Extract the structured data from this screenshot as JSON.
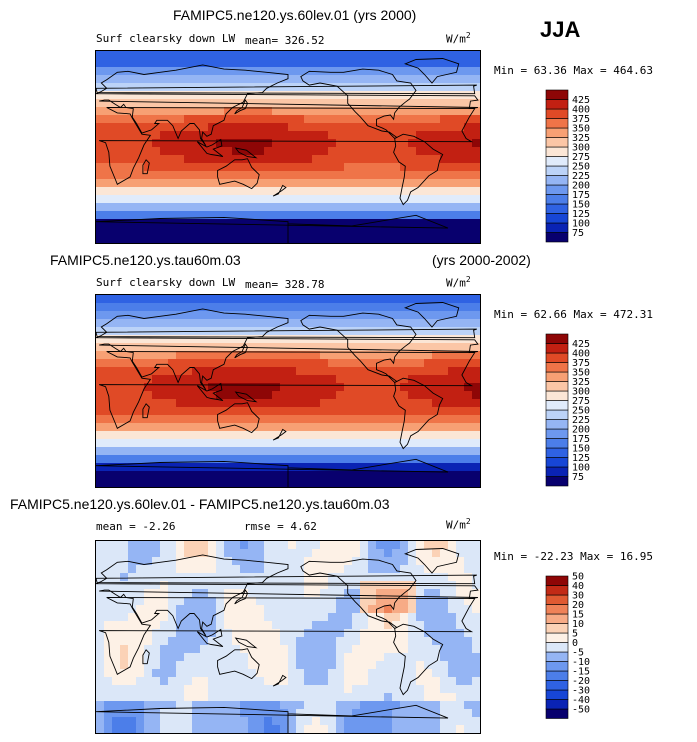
{
  "season": "JJA",
  "units": "W/m",
  "units_sup": "2",
  "panels": [
    {
      "header_left": "FAMIPC5.ne120.ys.60lev.01 (yrs 2000)",
      "variable": "Surf clearsky down LW",
      "stat1": "mean= 326.52",
      "minmax": "Min =  63.36 Max = 464.63",
      "kind": "absolute"
    },
    {
      "header_left": "FAMIPC5.ne120.ys.tau60m.03",
      "header_right": "(yrs 2000-2002)",
      "variable": "Surf clearsky down LW",
      "stat1": "mean= 328.78",
      "minmax": "Min =  62.66 Max = 472.31",
      "kind": "absolute"
    },
    {
      "header_left": "FAMIPC5.ne120.ys.60lev.01 - FAMIPC5.ne120.ys.tau60m.03",
      "stat1": "mean =  -2.26",
      "stat2": "rmse =   4.62",
      "minmax": "Min = -22.23 Max =  16.95",
      "kind": "difference"
    }
  ],
  "chart_data": [
    {
      "type": "heatmap",
      "title": "FAMIPC5.ne120.ys.60lev.01 (yrs 2000)",
      "subtitle": "Surf clearsky down LW",
      "units": "W/m2",
      "mean": 326.52,
      "min": 63.36,
      "max": 464.63,
      "colorbar_levels": [
        75,
        100,
        125,
        150,
        175,
        200,
        225,
        250,
        275,
        300,
        325,
        350,
        375,
        400,
        425
      ],
      "colorbar_colors": [
        "#08006e",
        "#0a23b4",
        "#1746d6",
        "#2f62e3",
        "#4c7ee9",
        "#6d98ef",
        "#95b5f4",
        "#bcd3f8",
        "#e0ebfb",
        "#fbe6d6",
        "#fbc6a6",
        "#f7a074",
        "#ef7448",
        "#e04a26",
        "#c22012",
        "#8e0606"
      ]
    },
    {
      "type": "heatmap",
      "title": "FAMIPC5.ne120.ys.tau60m.03 (yrs 2000-2002)",
      "subtitle": "Surf clearsky down LW",
      "units": "W/m2",
      "mean": 328.78,
      "min": 62.66,
      "max": 472.31,
      "colorbar_levels": [
        75,
        100,
        125,
        150,
        175,
        200,
        225,
        250,
        275,
        300,
        325,
        350,
        375,
        400,
        425
      ],
      "colorbar_colors": [
        "#08006e",
        "#0a23b4",
        "#1746d6",
        "#2f62e3",
        "#4c7ee9",
        "#6d98ef",
        "#95b5f4",
        "#bcd3f8",
        "#e0ebfb",
        "#fbe6d6",
        "#fbc6a6",
        "#f7a074",
        "#ef7448",
        "#e04a26",
        "#c22012",
        "#8e0606"
      ]
    },
    {
      "type": "heatmap",
      "title": "FAMIPC5.ne120.ys.60lev.01 - FAMIPC5.ne120.ys.tau60m.03",
      "units": "W/m2",
      "mean": -2.26,
      "rmse": 4.62,
      "min": -22.23,
      "max": 16.95,
      "colorbar_levels": [
        -50,
        -40,
        -30,
        -20,
        -15,
        -10,
        -5,
        0,
        5,
        10,
        15,
        20,
        30,
        40,
        50
      ],
      "colorbar_colors": [
        "#08006e",
        "#0a23b4",
        "#1746d6",
        "#2f62e3",
        "#4c7ee9",
        "#6d98ef",
        "#95b5f4",
        "#dbe7f8",
        "#fdf1e6",
        "#fbd2b6",
        "#f7ab86",
        "#ef8258",
        "#e05a32",
        "#c22a16",
        "#8e0606"
      ]
    }
  ]
}
